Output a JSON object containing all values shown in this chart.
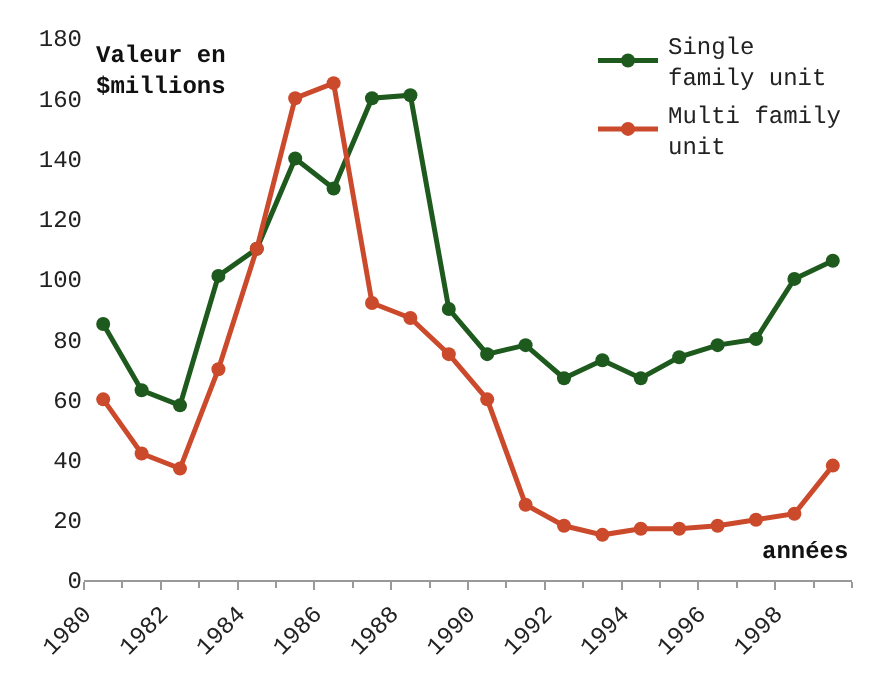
{
  "chart_data": {
    "type": "line",
    "ylabel": "Valeur en\n$millions",
    "xlabel": "années",
    "x": [
      1980.5,
      1981.5,
      1982.5,
      1983.5,
      1984.5,
      1985.5,
      1986.5,
      1987.5,
      1988.5,
      1989.5,
      1990.5,
      1991.5,
      1992.5,
      1993.5,
      1994.5,
      1995.5,
      1996.5,
      1997.5,
      1998.5,
      1999.5
    ],
    "series": [
      {
        "name": "Single\nfamily unit",
        "color": "#1e5a1e",
        "values": [
          85,
          63,
          58,
          101,
          110,
          140,
          130,
          160,
          161,
          90,
          75,
          78,
          67,
          73,
          67,
          74,
          78,
          80,
          100,
          106
        ]
      },
      {
        "name": "Multi family\nunit",
        "color": "#cc4a2c",
        "values": [
          60,
          42,
          37,
          70,
          110,
          160,
          165,
          92,
          87,
          75,
          60,
          25,
          18,
          15,
          17,
          17,
          18,
          20,
          22,
          38
        ]
      }
    ],
    "xlim": [
      1980,
      2000
    ],
    "xticks": [
      1980,
      1982,
      1984,
      1986,
      1988,
      1990,
      1992,
      1994,
      1996,
      1998
    ],
    "ylim": [
      0,
      180
    ],
    "yticks": [
      0,
      20,
      40,
      60,
      80,
      100,
      120,
      140,
      160,
      180
    ],
    "legend": "top right",
    "marker": "circle",
    "line_style": "solid"
  }
}
